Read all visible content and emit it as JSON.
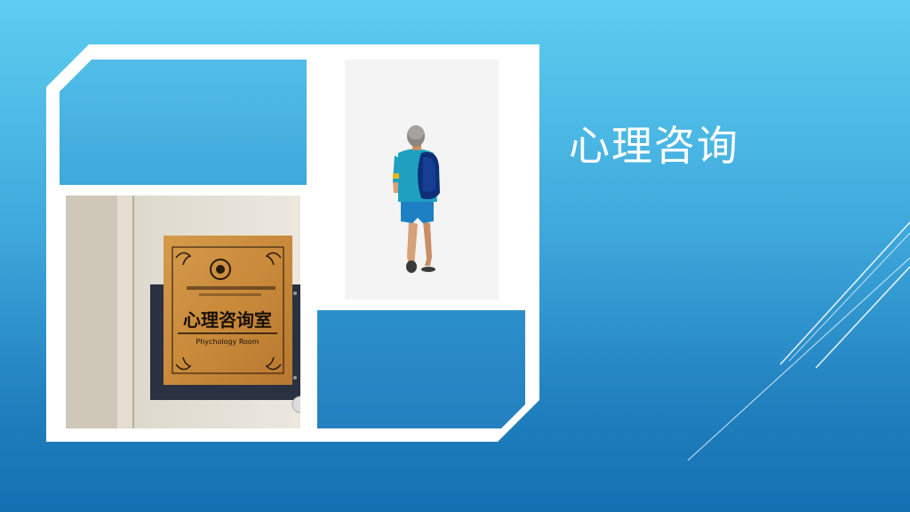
{
  "slide": {
    "title": "心理咨询",
    "colors": {
      "background_top": "#5dcdf0",
      "background_bottom": "#1570b2",
      "frame": "#ffffff",
      "panel_light": "#4ab5e3",
      "panel_dark": "#2585c4"
    }
  },
  "photo_sign": {
    "chinese_label": "心理咨询室",
    "english_label": "Phychology Room"
  },
  "illustration": {
    "description_icon": "walking-student-icon"
  }
}
